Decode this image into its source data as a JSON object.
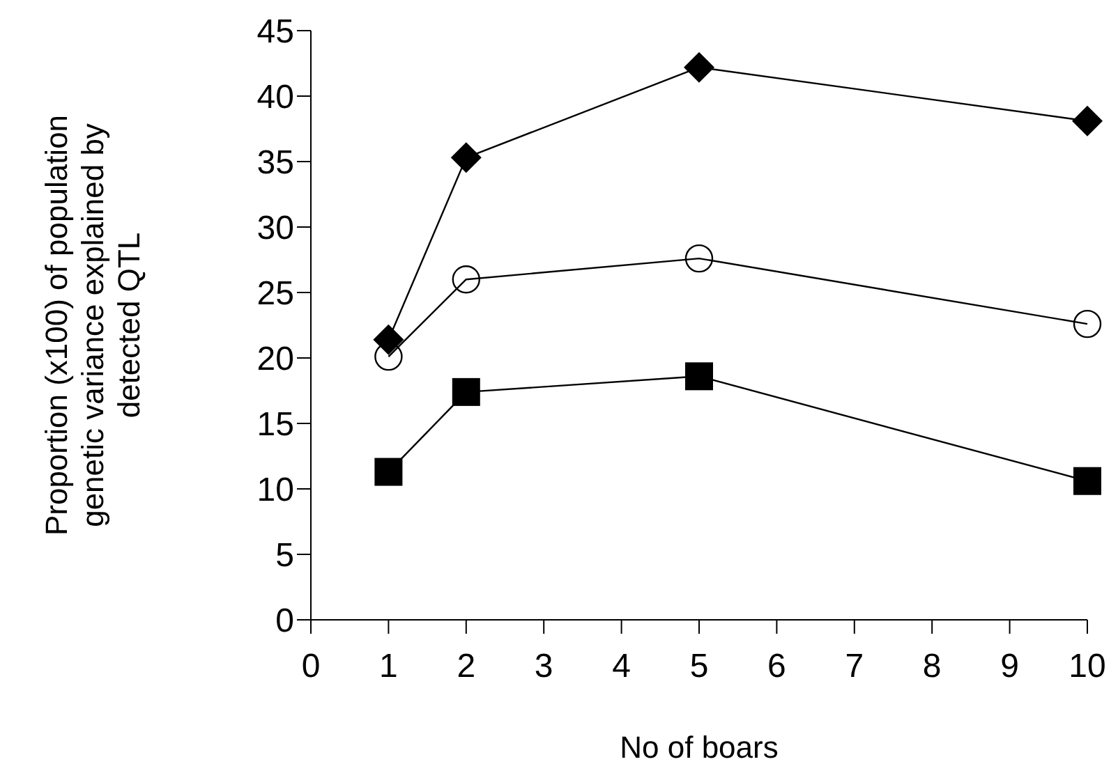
{
  "chart_data": {
    "type": "line",
    "xlabel": "No of boars",
    "ylabel": "Proportion (x100) of population\ngenetic variance explained by\ndetected QTL",
    "x": [
      1,
      2,
      5,
      10
    ],
    "series": [
      {
        "color": "#000000",
        "marker": "diamond",
        "values": [
          21.4,
          35.3,
          42.2,
          38.1
        ]
      },
      {
        "color": "#000000",
        "marker": "circle",
        "values": [
          20.1,
          26.0,
          27.6,
          22.6
        ]
      },
      {
        "color": "#000000",
        "marker": "square",
        "values": [
          11.3,
          17.4,
          18.6,
          10.6
        ]
      }
    ],
    "xlim": [
      0,
      10
    ],
    "xticks": [
      0,
      1,
      2,
      3,
      4,
      5,
      6,
      7,
      8,
      9,
      10
    ],
    "ylim": [
      0,
      45
    ],
    "yticks": [
      0,
      5,
      10,
      15,
      20,
      25,
      30,
      35,
      40,
      45
    ],
    "grid": false,
    "line_style": "solid"
  }
}
